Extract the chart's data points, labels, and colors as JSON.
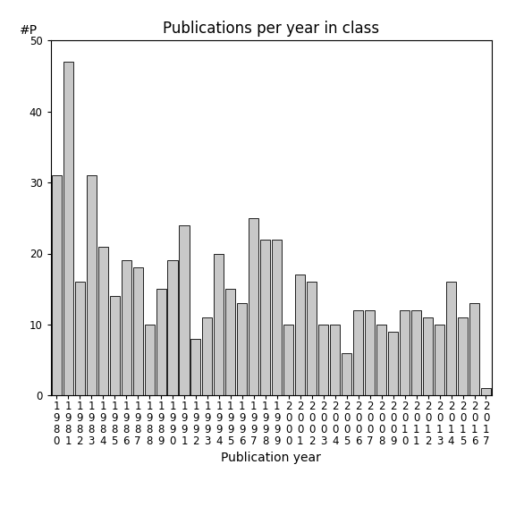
{
  "title": "Publications per year in class",
  "xlabel": "Publication year",
  "ylabel": "#P",
  "years": [
    1980,
    1981,
    1982,
    1983,
    1984,
    1985,
    1986,
    1987,
    1988,
    1989,
    1990,
    1991,
    1992,
    1993,
    1994,
    1995,
    1996,
    1997,
    1998,
    1999,
    2000,
    2001,
    2002,
    2003,
    2004,
    2005,
    2006,
    2007,
    2008,
    2009,
    2010,
    2011,
    2012,
    2013,
    2014,
    2015,
    2016,
    2017
  ],
  "values": [
    31,
    47,
    16,
    31,
    21,
    14,
    19,
    18,
    10,
    15,
    19,
    24,
    8,
    11,
    20,
    15,
    13,
    25,
    22,
    22,
    10,
    17,
    16,
    10,
    10,
    6,
    12,
    12,
    10,
    9,
    12,
    12,
    11,
    10,
    16,
    11,
    13,
    1
  ],
  "bar_color": "#c8c8c8",
  "bar_edgecolor": "#000000",
  "ylim": [
    0,
    50
  ],
  "yticks": [
    0,
    10,
    20,
    30,
    40,
    50
  ],
  "title_fontsize": 12,
  "label_fontsize": 10,
  "tick_fontsize": 8.5,
  "background_color": "#ffffff"
}
